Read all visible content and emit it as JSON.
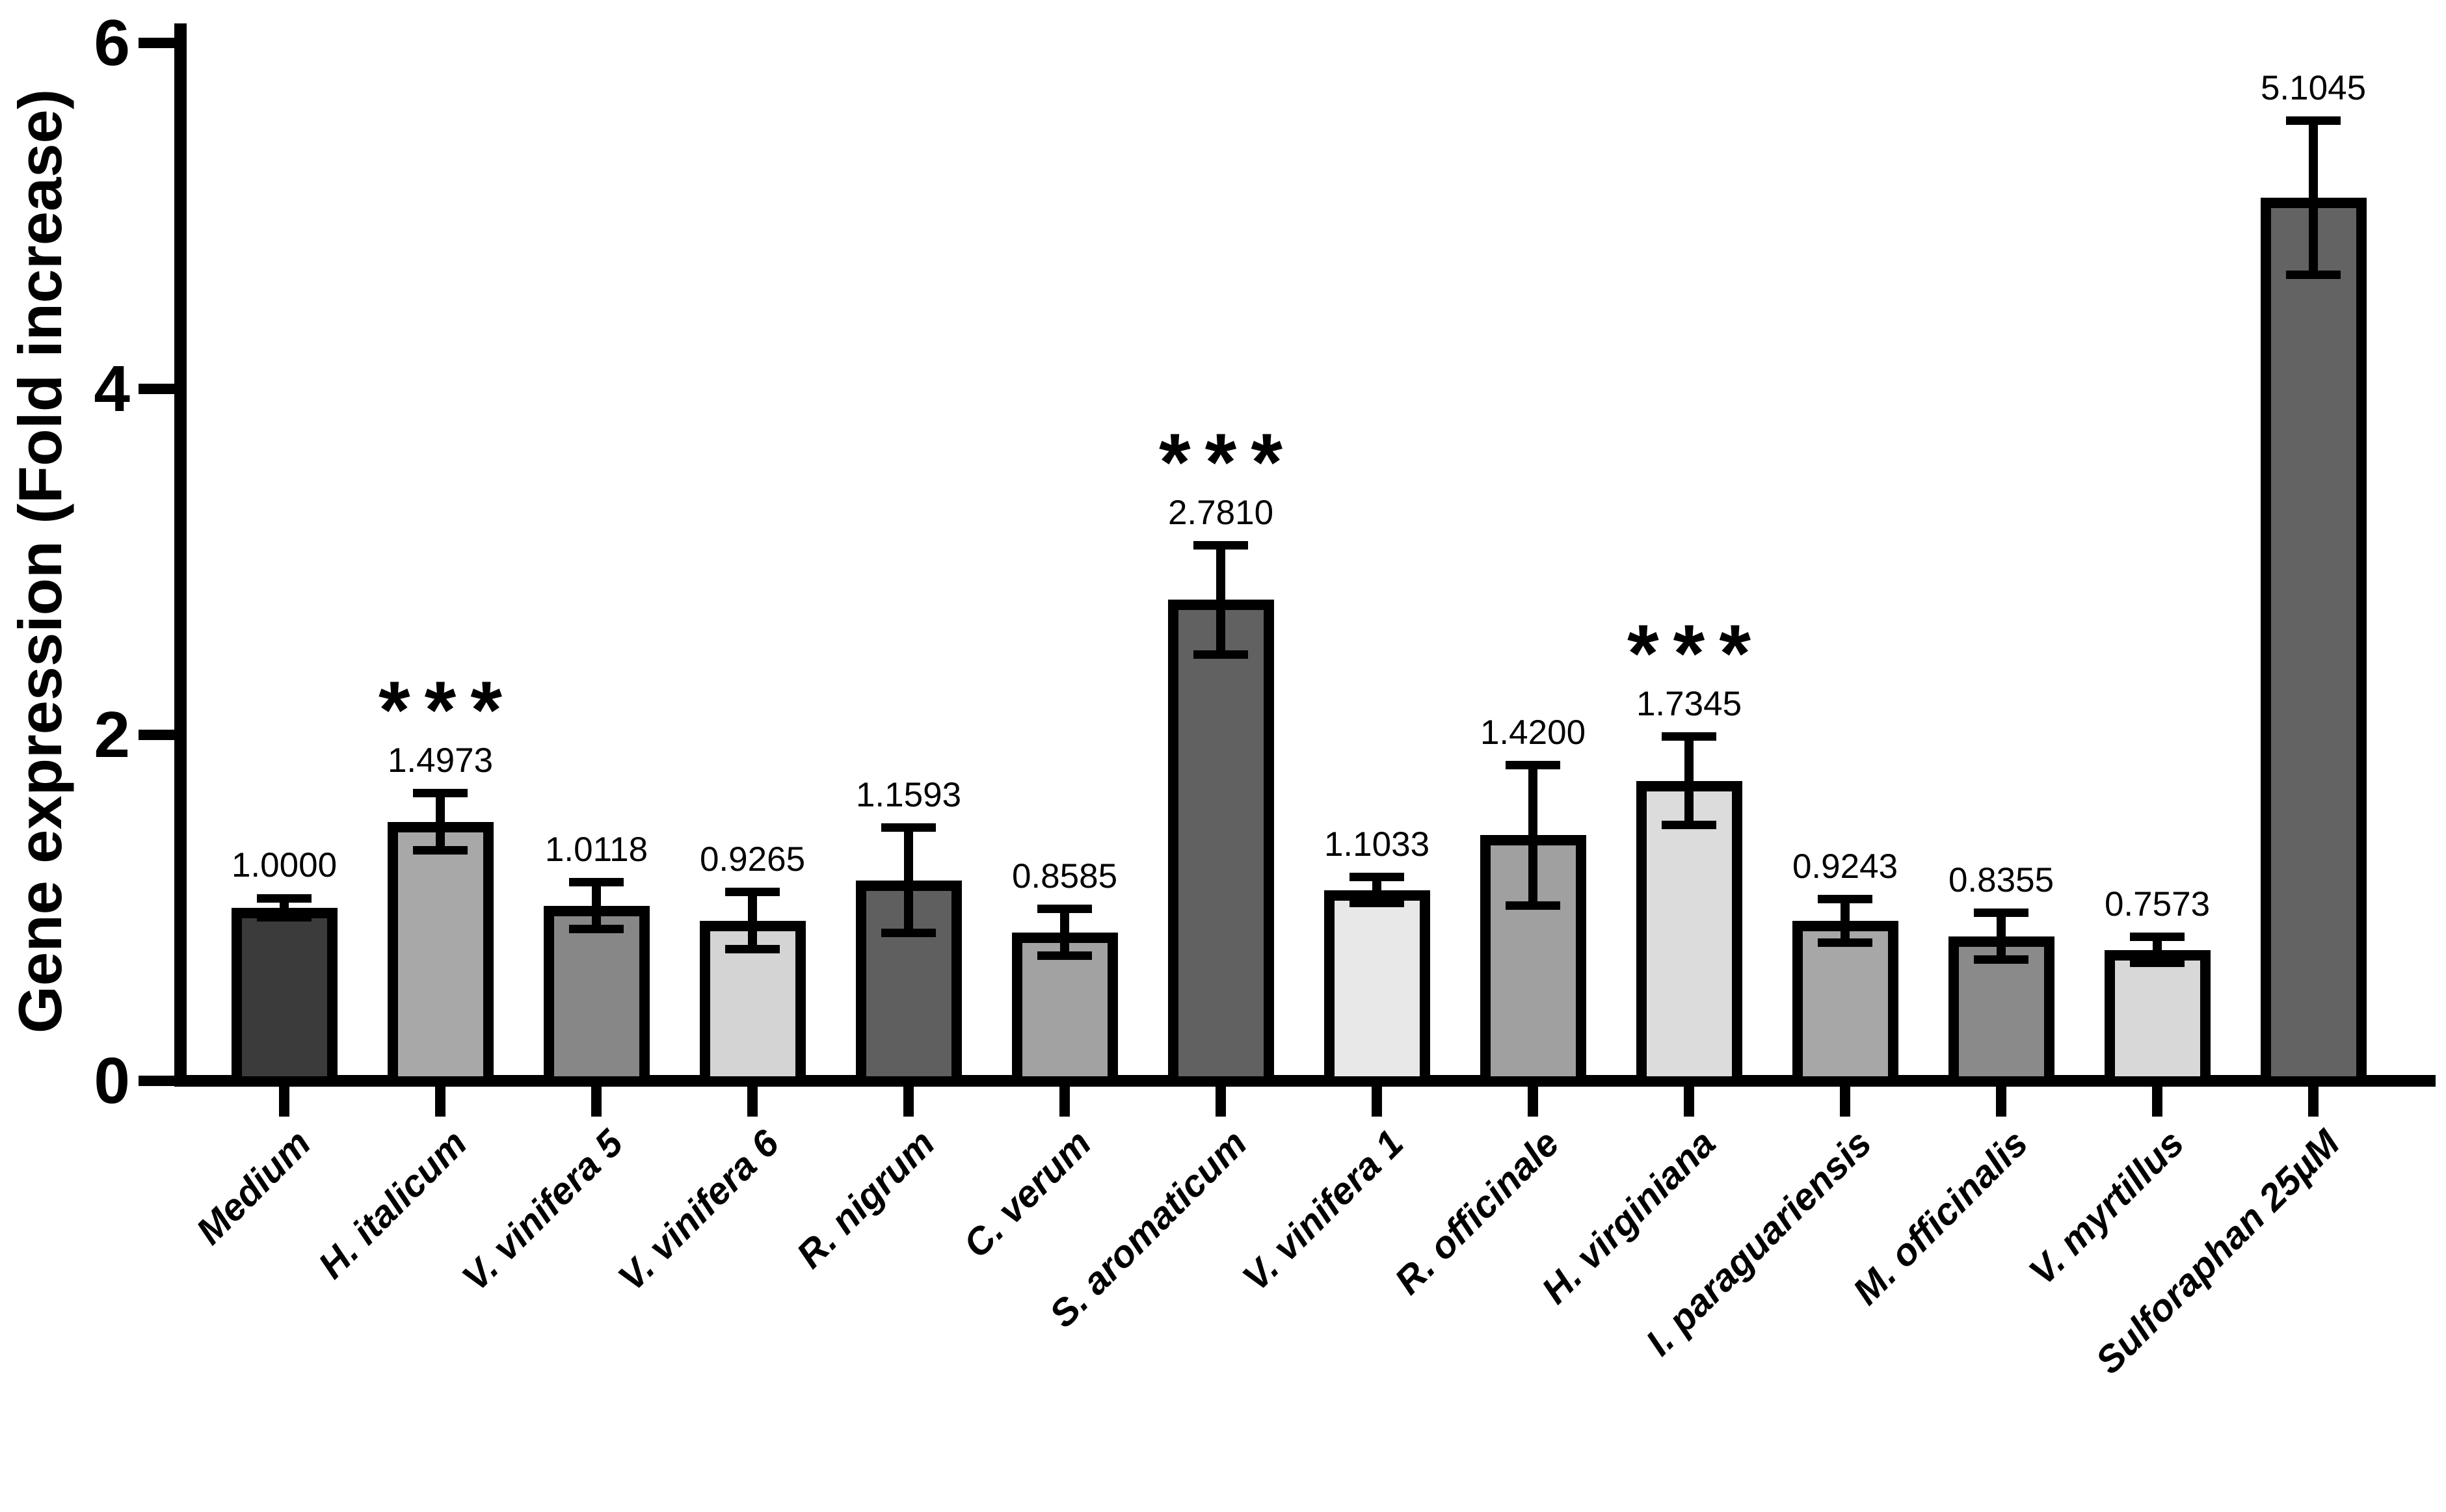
{
  "figure": {
    "background_color": "#ffffff",
    "axis_color": "#000000",
    "significance_marker": "***"
  },
  "chart_data": {
    "type": "bar",
    "title": "",
    "xlabel": "",
    "ylabel": "Gene expression (Fold increase)",
    "ylim": [
      0,
      6
    ],
    "yticks": [
      0,
      2,
      4,
      6
    ],
    "ytick_labels": [
      "0",
      "2",
      "4",
      "6"
    ],
    "grid": false,
    "legend": null,
    "categories": [
      "Medium",
      "H. italicum",
      "V. vinifera 5",
      "V. vinifera 6",
      "R. nigrum",
      "C. verum",
      "S. aromaticum",
      "V. vinifera 1",
      "R. officinale",
      "H. virginiana",
      "I. paraguariensis",
      "M. officinalis",
      "V. myrtillus",
      "Sulforaphan 25µM"
    ],
    "values": [
      1.0,
      1.4973,
      1.0118,
      0.9265,
      1.1593,
      0.8585,
      2.781,
      1.1033,
      1.42,
      1.7345,
      0.9243,
      0.8355,
      0.7573,
      5.1045
    ],
    "value_labels": [
      "1.0000",
      "1.4973",
      "1.0118",
      "0.9265",
      "1.1593",
      "0.8585",
      "2.7810",
      "1.1033",
      "1.4200",
      "1.7345",
      "0.9243",
      "0.8355",
      "0.7573",
      "5.1045"
    ],
    "errors": [
      0.08,
      0.19,
      0.16,
      0.19,
      0.33,
      0.16,
      0.34,
      0.1,
      0.43,
      0.28,
      0.15,
      0.16,
      0.1,
      0.47
    ],
    "significance": [
      "",
      "***",
      "",
      "",
      "",
      "",
      "***",
      "",
      "",
      "***",
      "",
      "",
      "",
      ""
    ],
    "bar_colors": [
      "#3b3b3b",
      "#a8a8a8",
      "#878787",
      "#d4d4d4",
      "#5f5f5f",
      "#a2a2a2",
      "#616161",
      "#e8e8e8",
      "#a0a0a0",
      "#dcdcdc",
      "#a7a7a7",
      "#8a8a8a",
      "#d8d8d8",
      "#636363"
    ],
    "bar_outline_color": "#000000",
    "error_bar_style": "both-directions-with-caps"
  }
}
